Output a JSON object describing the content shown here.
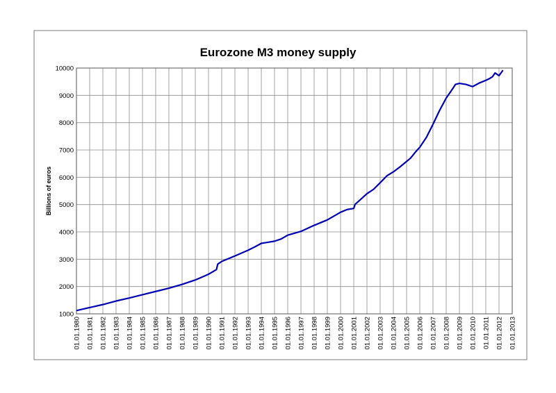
{
  "chart_data": {
    "type": "line",
    "title": "Eurozone M3 money supply",
    "xlabel": "",
    "ylabel": "Billions of euros",
    "ylim": [
      1000,
      10000
    ],
    "yticks": [
      "1000",
      "2000",
      "3000",
      "4000",
      "5000",
      "6000",
      "7000",
      "8000",
      "9000",
      "10000"
    ],
    "xlim": [
      1980,
      2013
    ],
    "xticks": [
      "01.01.1980",
      "01.01.1981",
      "01.01.1982",
      "01.01.1983",
      "01.01.1984",
      "01.01.1985",
      "01.01.1986",
      "01.01.1987",
      "01.01.1988",
      "01.01.1989",
      "01.01.1990",
      "01.01.1991",
      "01.01.1992",
      "01.01.1993",
      "01.01.1994",
      "01.01.1995",
      "01.01.1996",
      "01.01.1997",
      "01.01.1998",
      "01.01.1999",
      "01.01.2000",
      "01.01.2001",
      "01.01.2002",
      "01.01.2003",
      "01.01.2004",
      "01.01.2005",
      "01.01.2006",
      "01.01.2007",
      "01.01.2008",
      "01.01.2009",
      "01.01.2010",
      "01.01.2011",
      "01.01.2012",
      "01.01.2013"
    ],
    "grid": true,
    "legend": "none",
    "series": [
      {
        "name": "",
        "color": "#0000b4",
        "x": [
          1980.0,
          1981.0,
          1982.0,
          1983.0,
          1984.0,
          1985.0,
          1986.0,
          1987.0,
          1988.0,
          1989.0,
          1990.0,
          1990.6,
          1990.7,
          1991.0,
          1992.0,
          1993.0,
          1993.5,
          1994.0,
          1995.0,
          1995.5,
          1996.0,
          1997.0,
          1998.0,
          1999.0,
          2000.0,
          2000.5,
          2001.0,
          2001.1,
          2001.5,
          2002.0,
          2002.5,
          2003.0,
          2003.5,
          2004.0,
          2004.5,
          2005.0,
          2005.3,
          2005.7,
          2006.0,
          2006.5,
          2007.0,
          2007.5,
          2008.0,
          2008.5,
          2008.7,
          2009.0,
          2009.5,
          2010.0,
          2010.5,
          2011.0,
          2011.3,
          2011.5,
          2011.7,
          2012.0,
          2012.3
        ],
        "y": [
          1120,
          1230,
          1340,
          1470,
          1580,
          1700,
          1820,
          1940,
          2080,
          2240,
          2450,
          2620,
          2820,
          2920,
          3120,
          3330,
          3450,
          3580,
          3660,
          3740,
          3880,
          4020,
          4240,
          4440,
          4720,
          4820,
          4860,
          5010,
          5180,
          5400,
          5560,
          5800,
          6050,
          6200,
          6380,
          6580,
          6700,
          6940,
          7100,
          7460,
          7940,
          8450,
          8900,
          9250,
          9400,
          9440,
          9400,
          9320,
          9450,
          9550,
          9620,
          9680,
          9820,
          9720,
          9920
        ]
      }
    ]
  }
}
